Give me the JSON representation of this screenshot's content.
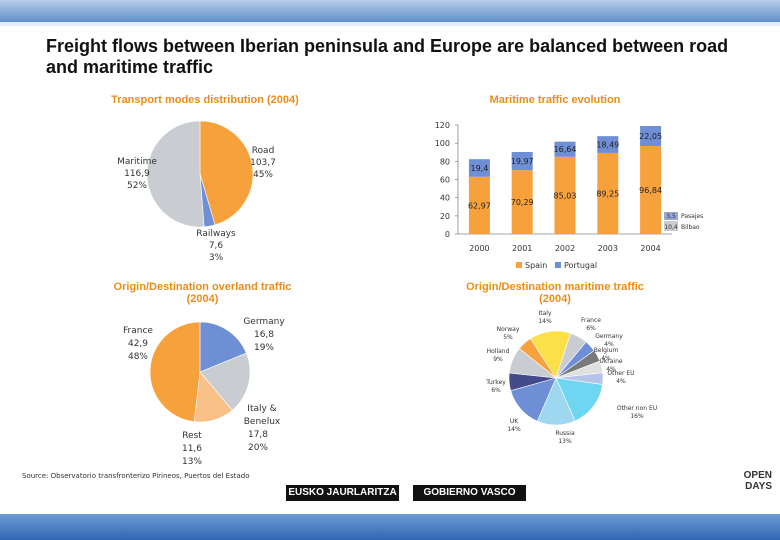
{
  "title": "Freight flows between Iberian peninsula and Europe are balanced between road and maritime traffic",
  "source": "Source: Observatorio transfronterizo Pirineos, Puertos del Estado",
  "logo": {
    "left": "EUSKO JAURLARITZA",
    "right": "GOBIERNO VASCO"
  },
  "open_days": {
    "line1": "OPEN",
    "line2": "DAYS"
  },
  "colors": {
    "orange": "#f7a13d",
    "blue": "#6e8fd6",
    "grey": "#c9ccd1",
    "peach": "#f9c088",
    "accent": "#e88d1c"
  },
  "chart_data": [
    {
      "type": "pie",
      "title": "Transport modes distribution (2004)",
      "slices": [
        {
          "label": "Road",
          "value": 103.7,
          "pct": "45%",
          "color": "#f7a13d"
        },
        {
          "label": "Railways",
          "value": 7.6,
          "pct": "3%",
          "color": "#6e8fd6"
        },
        {
          "label": "Maritime",
          "value": 116.9,
          "pct": "52%",
          "color": "#c9ccd1"
        }
      ]
    },
    {
      "type": "bar",
      "title": "Maritime traffic evolution",
      "categories": [
        "2000",
        "2001",
        "2002",
        "2003",
        "2004"
      ],
      "series": [
        {
          "name": "Spain",
          "values": [
            62.97,
            70.29,
            85.03,
            89.25,
            96.84
          ],
          "labels": [
            "62,97",
            "70,29",
            "85,03",
            "89,25",
            "96,84"
          ],
          "color": "#f7a13d"
        },
        {
          "name": "Portugal",
          "values": [
            19.4,
            19.97,
            16.64,
            18.49,
            22.05
          ],
          "labels": [
            "19,4",
            "19,97",
            "16,64",
            "18,49",
            "22,05"
          ],
          "color": "#6e8fd6"
        }
      ],
      "yticks": [
        "0",
        "20",
        "40",
        "60",
        "80",
        "100",
        "120"
      ],
      "ylim": [
        0,
        120
      ],
      "annotations": [
        {
          "value": "3,5",
          "label": "Pasajes"
        },
        {
          "value": "10,4",
          "label": "Bilbao"
        }
      ]
    },
    {
      "type": "pie",
      "title": "Origin/Destination overland traffic (2004)",
      "slices": [
        {
          "label": "Germany",
          "value": 16.8,
          "pct": "19%",
          "color": "#6e8fd6"
        },
        {
          "label": "Italy & Benelux",
          "value": 17.8,
          "pct": "20%",
          "color": "#c9ccd1"
        },
        {
          "label": "Rest",
          "value": 11.6,
          "pct": "13%",
          "color": "#f9c088"
        },
        {
          "label": "France",
          "value": 42.9,
          "pct": "48%",
          "color": "#f7a13d"
        }
      ]
    },
    {
      "type": "pie",
      "title": "Origin/Destination maritime traffic (2004)",
      "slices": [
        {
          "label": "France",
          "pct": "6%",
          "value": 6,
          "color": "#c9ccd1"
        },
        {
          "label": "Germany",
          "pct": "4%",
          "value": 4,
          "color": "#6e8fd6"
        },
        {
          "label": "Belgium",
          "pct": "4%",
          "value": 4,
          "color": "#7a7a7a"
        },
        {
          "label": "Ukraine",
          "pct": "4%",
          "value": 4,
          "color": "#e0e0e0"
        },
        {
          "label": "Other EU",
          "pct": "4%",
          "value": 4,
          "color": "#b7c4ea"
        },
        {
          "label": "Other non EU",
          "pct": "16%",
          "value": 16,
          "color": "#6fd6f2"
        },
        {
          "label": "Russia",
          "pct": "13%",
          "value": 13,
          "color": "#9ed8f0"
        },
        {
          "label": "UK",
          "pct": "14%",
          "value": 14,
          "color": "#6e8fd6"
        },
        {
          "label": "Turkey",
          "pct": "6%",
          "value": 6,
          "color": "#444a8a"
        },
        {
          "label": "Holland",
          "pct": "9%",
          "value": 9,
          "color": "#c9ccd1"
        },
        {
          "label": "Norway",
          "pct": "5%",
          "value": 5,
          "color": "#f7a13d"
        },
        {
          "label": "Italy",
          "pct": "14%",
          "value": 14,
          "color": "#fbe04a"
        }
      ]
    }
  ]
}
